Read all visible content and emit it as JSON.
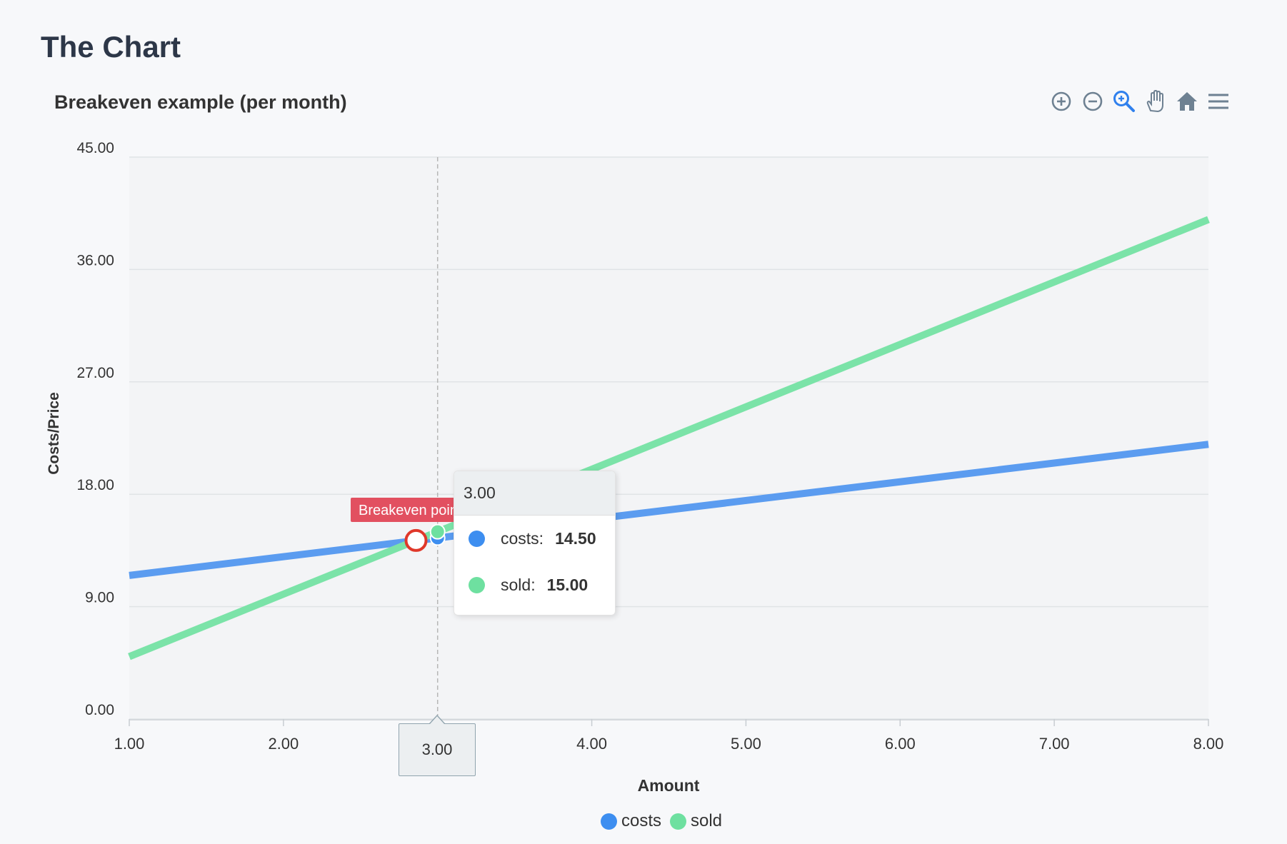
{
  "page": {
    "title": "The Chart"
  },
  "toolbar": {
    "items": [
      {
        "icon": "zoom-in-icon"
      },
      {
        "icon": "zoom-out-icon"
      },
      {
        "icon": "selection-zoom-icon",
        "active": true
      },
      {
        "icon": "pan-hand-icon"
      },
      {
        "icon": "reset-home-icon"
      },
      {
        "icon": "menu-icon"
      }
    ]
  },
  "tooltip": {
    "title": "3.00",
    "rows": [
      {
        "name": "costs:",
        "value": "14.50",
        "color": "#3d8ef0"
      },
      {
        "name": "sold:",
        "value": "15.00",
        "color": "#6ee0a0"
      }
    ]
  },
  "crosshair_label": "3.00",
  "annotation": {
    "label": "Breakeven point",
    "x": 2.86,
    "y": 14.3,
    "color": "#e25060"
  },
  "colors": {
    "costs": "#5b9cf0",
    "sold": "#7be3a8",
    "costs_marker": "#3d8ef0",
    "sold_marker": "#6ee0a0",
    "grid": "#e0e3e6",
    "plot_bg": "#f3f4f6",
    "annotation_ring": "#e0382a"
  },
  "chart_data": {
    "type": "line",
    "title": "Breakeven example (per month)",
    "xlabel": "Amount",
    "ylabel": "Costs/Price",
    "x": [
      1,
      8
    ],
    "xlim": [
      1,
      8
    ],
    "ylim": [
      0,
      45
    ],
    "xticks": [
      "1.00",
      "2.00",
      "3.00",
      "4.00",
      "5.00",
      "6.00",
      "7.00",
      "8.00"
    ],
    "yticks": [
      "0.00",
      "9.00",
      "18.00",
      "27.00",
      "36.00",
      "45.00"
    ],
    "xtick_values": [
      1,
      2,
      3,
      4,
      5,
      6,
      7,
      8
    ],
    "ytick_values": [
      0,
      9,
      18,
      27,
      36,
      45
    ],
    "series": [
      {
        "name": "costs",
        "values": [
          11.5,
          22
        ]
      },
      {
        "name": "sold",
        "values": [
          5,
          40
        ]
      }
    ],
    "hover_x": 3,
    "hover_points": [
      {
        "series": "costs",
        "y": 14.5
      },
      {
        "series": "sold",
        "y": 15
      }
    ],
    "legend": [
      "costs",
      "sold"
    ],
    "legend_position": "bottom-center",
    "grid": true
  }
}
